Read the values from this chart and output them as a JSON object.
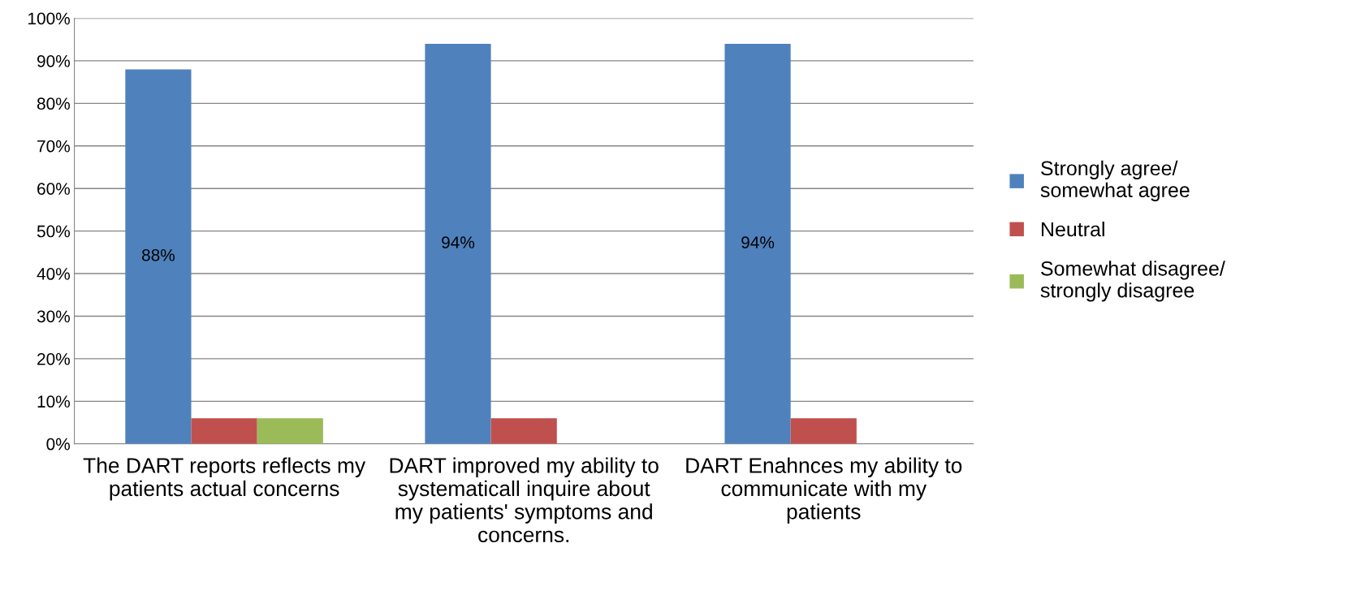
{
  "chart_data": {
    "type": "bar",
    "categories": [
      "The DART reports reflects my\npatients actual concerns",
      "DART improved my ability to\nsystematicall inquire about\nmy patients' symptoms and\nconcerns.",
      "DART Enahnces my ability to\ncommunicate with my\npatients"
    ],
    "series": [
      {
        "name": "Strongly agree/\nsomewhat agree",
        "color": "#4f81bd",
        "values": [
          88,
          94,
          94
        ],
        "value_labels": [
          "88%",
          "94%",
          "94%"
        ]
      },
      {
        "name": "Neutral",
        "color": "#c0504d",
        "values": [
          6,
          6,
          6
        ]
      },
      {
        "name": "Somewhat disagree/\nstrongly disagree",
        "color": "#9bbb59",
        "values": [
          6,
          0,
          0
        ]
      }
    ],
    "ylim": [
      0,
      100
    ],
    "yticks": [
      {
        "value": 0,
        "label": "0%"
      },
      {
        "value": 10,
        "label": "10%"
      },
      {
        "value": 20,
        "label": "20%"
      },
      {
        "value": 30,
        "label": "30%"
      },
      {
        "value": 40,
        "label": "40%"
      },
      {
        "value": 50,
        "label": "50%"
      },
      {
        "value": 60,
        "label": "60%"
      },
      {
        "value": 70,
        "label": "70%"
      },
      {
        "value": 80,
        "label": "80%"
      },
      {
        "value": 90,
        "label": "90%"
      },
      {
        "value": 100,
        "label": "100%"
      }
    ],
    "grid": "y",
    "legend": "right"
  }
}
